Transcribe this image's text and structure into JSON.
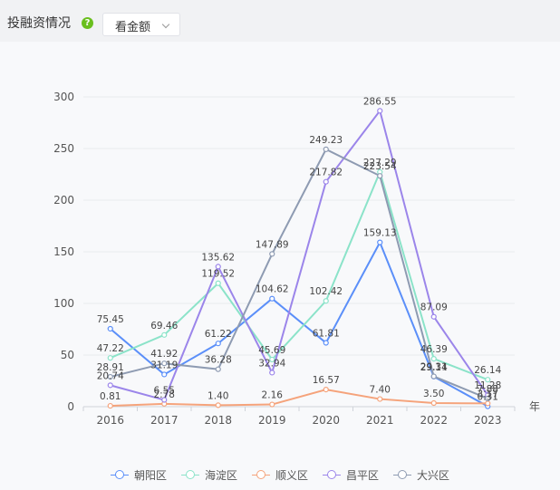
{
  "header": {
    "title": "投融资情况",
    "dropdown_value": "看金额"
  },
  "chart_data": {
    "type": "line",
    "x": [
      "2016",
      "2017",
      "2018",
      "2019",
      "2020",
      "2021",
      "2022",
      "2023"
    ],
    "x_unit": "年",
    "ylim": [
      0,
      300
    ],
    "yticks": [
      0,
      50,
      100,
      150,
      200,
      250,
      300
    ],
    "grid": true,
    "legend_position": "bottom",
    "series": [
      {
        "name": "朝阳区",
        "color": "#5b8ff9",
        "values": [
          75.45,
          31.19,
          61.22,
          104.62,
          61.81,
          159.13,
          29.14,
          0.31
        ]
      },
      {
        "name": "海淀区",
        "color": "#8be3c9",
        "values": [
          47.22,
          69.46,
          119.52,
          45.69,
          102.42,
          227.29,
          46.39,
          26.14
        ]
      },
      {
        "name": "顺义区",
        "color": "#f5a37b",
        "values": [
          0.81,
          2.78,
          1.4,
          2.16,
          16.57,
          7.4,
          3.5,
          3.17
        ]
      },
      {
        "name": "昌平区",
        "color": "#9b85ea",
        "values": [
          20.74,
          6.55,
          135.62,
          32.94,
          217.82,
          286.55,
          87.09,
          11.28
        ]
      },
      {
        "name": "大兴区",
        "color": "#8e9bb2",
        "values": [
          28.91,
          41.92,
          36.28,
          147.89,
          249.23,
          223.54,
          29.31,
          7.88
        ]
      }
    ]
  }
}
